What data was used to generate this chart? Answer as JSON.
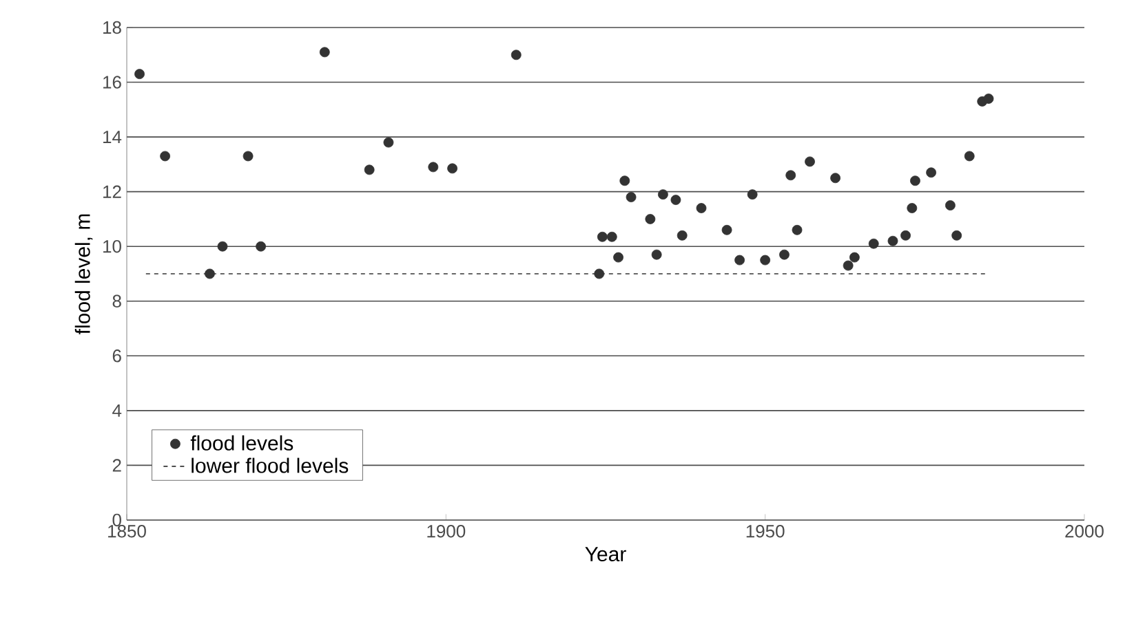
{
  "chart_data": {
    "type": "scatter",
    "xlabel": "Year",
    "ylabel": "flood level, m",
    "xlim": [
      1850,
      2000
    ],
    "xticks": [
      1850,
      1900,
      1950,
      2000
    ],
    "ylim": [
      0,
      18
    ],
    "yticks": [
      0,
      2,
      4,
      6,
      8,
      10,
      12,
      14,
      16,
      18
    ],
    "grid": "y",
    "legend": "bottom left",
    "series": [
      {
        "name": "flood levels",
        "marker": "circle",
        "color": "#333333",
        "x": [
          1852,
          1856,
          1863,
          1865,
          1869,
          1871,
          1881,
          1888,
          1891,
          1898,
          1901,
          1911,
          1924,
          1924.5,
          1926,
          1927,
          1928,
          1929,
          1932,
          1933,
          1934,
          1936,
          1937,
          1940,
          1944,
          1946,
          1948,
          1950,
          1953,
          1954,
          1955,
          1957,
          1961,
          1963,
          1964,
          1967,
          1970,
          1972,
          1973,
          1973.5,
          1976,
          1979,
          1980,
          1982,
          1984,
          1985
        ],
        "values": [
          16.3,
          13.3,
          9.0,
          10.0,
          13.3,
          10.0,
          17.1,
          12.8,
          13.8,
          12.9,
          12.85,
          17.0,
          9.0,
          10.35,
          10.35,
          9.6,
          12.4,
          11.8,
          11.0,
          9.7,
          11.9,
          11.7,
          10.4,
          11.4,
          10.6,
          9.5,
          11.9,
          9.5,
          9.7,
          12.6,
          10.6,
          13.1,
          12.5,
          9.3,
          9.6,
          10.1,
          10.2,
          10.4,
          11.4,
          12.4,
          12.7,
          11.5,
          10.4,
          13.3,
          15.3,
          15.4
        ]
      },
      {
        "name": "lower flood levels",
        "type": "line",
        "color": "#333333",
        "line_style": "dashed",
        "marker": "none",
        "x": [
          1853,
          1985
        ],
        "values": [
          9,
          9
        ]
      }
    ]
  }
}
